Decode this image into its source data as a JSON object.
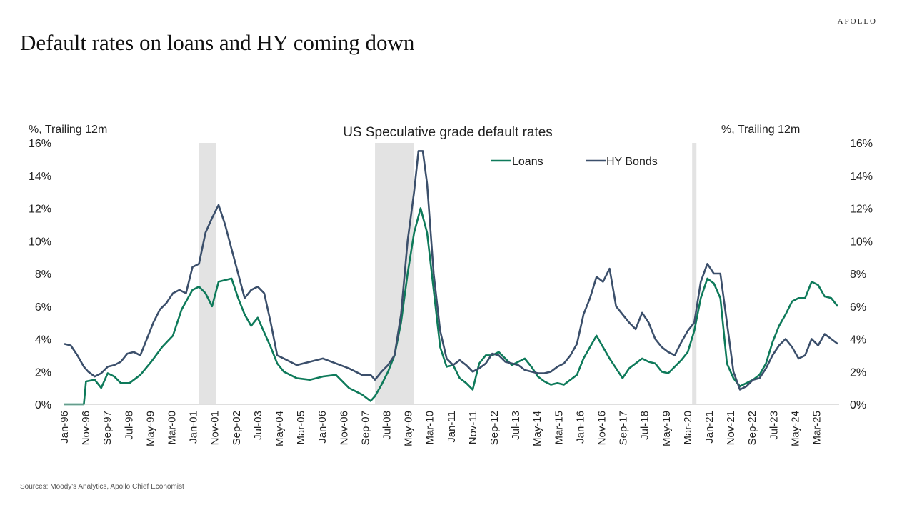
{
  "header": {
    "brand": "APOLLO",
    "title": "Default rates on loans and HY coming down",
    "source": "Sources: Moody's Analytics, Apollo Chief Economist"
  },
  "chart_data": {
    "type": "line",
    "title": "US Speculative grade default rates",
    "ylabel_left": "%, Trailing 12m",
    "ylabel_right": "%, Trailing 12m",
    "ylim": [
      0,
      16
    ],
    "yticks": [
      "0%",
      "2%",
      "4%",
      "6%",
      "8%",
      "10%",
      "12%",
      "14%",
      "16%"
    ],
    "xlim": [
      "1996-01",
      "2025-09"
    ],
    "xticks": [
      "Jan-96",
      "Nov-96",
      "Sep-97",
      "Jul-98",
      "May-99",
      "Mar-00",
      "Jan-01",
      "Nov-01",
      "Sep-02",
      "Jul-03",
      "May-04",
      "Mar-05",
      "Jan-06",
      "Nov-06",
      "Sep-07",
      "Jul-08",
      "May-09",
      "Mar-10",
      "Jan-11",
      "Nov-11",
      "Sep-12",
      "Jul-13",
      "May-14",
      "Mar-15",
      "Jan-16",
      "Nov-16",
      "Sep-17",
      "Jul-18",
      "May-19",
      "Mar-20",
      "Jan-21",
      "Nov-21",
      "Sep-22",
      "Jul-23",
      "May-24",
      "Mar-25"
    ],
    "recessions": [
      [
        "2001-03",
        "2001-11"
      ],
      [
        "2007-12",
        "2009-06"
      ],
      [
        "2020-02",
        "2020-04"
      ]
    ],
    "legend_position": "top-right",
    "series": [
      {
        "name": "Loans",
        "color": "#0e7a5a",
        "points": [
          [
            "1996-01",
            0
          ],
          [
            "1996-10",
            0
          ],
          [
            "1996-11",
            1.4
          ],
          [
            "1997-03",
            1.5
          ],
          [
            "1997-06",
            1.0
          ],
          [
            "1997-09",
            1.9
          ],
          [
            "1997-12",
            1.7
          ],
          [
            "1998-03",
            1.3
          ],
          [
            "1998-07",
            1.3
          ],
          [
            "1998-12",
            1.8
          ],
          [
            "1999-05",
            2.6
          ],
          [
            "1999-10",
            3.5
          ],
          [
            "2000-03",
            4.2
          ],
          [
            "2000-07",
            5.8
          ],
          [
            "2000-12",
            7.0
          ],
          [
            "2001-03",
            7.2
          ],
          [
            "2001-06",
            6.8
          ],
          [
            "2001-09",
            6.0
          ],
          [
            "2001-12",
            7.5
          ],
          [
            "2002-03",
            7.6
          ],
          [
            "2002-06",
            7.7
          ],
          [
            "2002-09",
            6.5
          ],
          [
            "2002-12",
            5.5
          ],
          [
            "2003-03",
            4.8
          ],
          [
            "2003-06",
            5.3
          ],
          [
            "2003-09",
            4.4
          ],
          [
            "2003-12",
            3.5
          ],
          [
            "2004-03",
            2.5
          ],
          [
            "2004-06",
            2.0
          ],
          [
            "2004-12",
            1.6
          ],
          [
            "2005-06",
            1.5
          ],
          [
            "2005-12",
            1.7
          ],
          [
            "2006-06",
            1.8
          ],
          [
            "2006-12",
            1.0
          ],
          [
            "2007-06",
            0.6
          ],
          [
            "2007-10",
            0.2
          ],
          [
            "2007-12",
            0.5
          ],
          [
            "2008-03",
            1.2
          ],
          [
            "2008-06",
            2.0
          ],
          [
            "2008-09",
            3.0
          ],
          [
            "2008-12",
            5.0
          ],
          [
            "2009-03",
            8.0
          ],
          [
            "2009-06",
            10.5
          ],
          [
            "2009-09",
            12.0
          ],
          [
            "2009-12",
            10.5
          ],
          [
            "2010-03",
            7.0
          ],
          [
            "2010-06",
            3.5
          ],
          [
            "2010-09",
            2.3
          ],
          [
            "2010-12",
            2.4
          ],
          [
            "2011-03",
            1.6
          ],
          [
            "2011-06",
            1.3
          ],
          [
            "2011-09",
            0.9
          ],
          [
            "2011-12",
            2.5
          ],
          [
            "2012-03",
            3.0
          ],
          [
            "2012-06",
            3.0
          ],
          [
            "2012-09",
            3.2
          ],
          [
            "2012-12",
            2.8
          ],
          [
            "2013-03",
            2.4
          ],
          [
            "2013-06",
            2.6
          ],
          [
            "2013-09",
            2.8
          ],
          [
            "2013-12",
            2.3
          ],
          [
            "2014-03",
            1.7
          ],
          [
            "2014-06",
            1.4
          ],
          [
            "2014-09",
            1.2
          ],
          [
            "2014-12",
            1.3
          ],
          [
            "2015-03",
            1.2
          ],
          [
            "2015-06",
            1.5
          ],
          [
            "2015-09",
            1.8
          ],
          [
            "2015-12",
            2.8
          ],
          [
            "2016-03",
            3.5
          ],
          [
            "2016-06",
            4.2
          ],
          [
            "2016-09",
            3.5
          ],
          [
            "2016-12",
            2.8
          ],
          [
            "2017-03",
            2.2
          ],
          [
            "2017-06",
            1.6
          ],
          [
            "2017-09",
            2.2
          ],
          [
            "2017-12",
            2.5
          ],
          [
            "2018-03",
            2.8
          ],
          [
            "2018-06",
            2.6
          ],
          [
            "2018-09",
            2.5
          ],
          [
            "2018-12",
            2.0
          ],
          [
            "2019-03",
            1.9
          ],
          [
            "2019-06",
            2.3
          ],
          [
            "2019-09",
            2.7
          ],
          [
            "2019-12",
            3.2
          ],
          [
            "2020-03",
            4.5
          ],
          [
            "2020-06",
            6.5
          ],
          [
            "2020-09",
            7.7
          ],
          [
            "2020-12",
            7.4
          ],
          [
            "2021-03",
            6.5
          ],
          [
            "2021-06",
            2.5
          ],
          [
            "2021-09",
            1.6
          ],
          [
            "2021-12",
            1.1
          ],
          [
            "2022-03",
            1.3
          ],
          [
            "2022-06",
            1.5
          ],
          [
            "2022-09",
            1.8
          ],
          [
            "2022-12",
            2.5
          ],
          [
            "2023-03",
            3.8
          ],
          [
            "2023-06",
            4.8
          ],
          [
            "2023-09",
            5.5
          ],
          [
            "2023-12",
            6.3
          ],
          [
            "2024-03",
            6.5
          ],
          [
            "2024-06",
            6.5
          ],
          [
            "2024-09",
            7.5
          ],
          [
            "2024-12",
            7.3
          ],
          [
            "2025-03",
            6.6
          ],
          [
            "2025-06",
            6.5
          ],
          [
            "2025-09",
            6.0
          ]
        ]
      },
      {
        "name": "HY Bonds",
        "color": "#3b4f6b",
        "points": [
          [
            "1996-01",
            3.7
          ],
          [
            "1996-04",
            3.6
          ],
          [
            "1996-07",
            3.0
          ],
          [
            "1996-10",
            2.3
          ],
          [
            "1996-12",
            2.0
          ],
          [
            "1997-03",
            1.7
          ],
          [
            "1997-06",
            1.9
          ],
          [
            "1997-09",
            2.3
          ],
          [
            "1997-12",
            2.4
          ],
          [
            "1998-03",
            2.6
          ],
          [
            "1998-06",
            3.1
          ],
          [
            "1998-09",
            3.2
          ],
          [
            "1998-12",
            3.0
          ],
          [
            "1999-03",
            4.0
          ],
          [
            "1999-06",
            5.0
          ],
          [
            "1999-09",
            5.8
          ],
          [
            "1999-12",
            6.2
          ],
          [
            "2000-03",
            6.8
          ],
          [
            "2000-06",
            7.0
          ],
          [
            "2000-09",
            6.8
          ],
          [
            "2000-12",
            8.4
          ],
          [
            "2001-03",
            8.6
          ],
          [
            "2001-06",
            10.5
          ],
          [
            "2001-09",
            11.4
          ],
          [
            "2001-12",
            12.2
          ],
          [
            "2002-03",
            11.0
          ],
          [
            "2002-06",
            9.5
          ],
          [
            "2002-09",
            8.0
          ],
          [
            "2002-12",
            6.5
          ],
          [
            "2003-03",
            7.0
          ],
          [
            "2003-06",
            7.2
          ],
          [
            "2003-09",
            6.8
          ],
          [
            "2003-12",
            5.0
          ],
          [
            "2004-03",
            3.0
          ],
          [
            "2004-06",
            2.8
          ],
          [
            "2004-12",
            2.4
          ],
          [
            "2005-06",
            2.6
          ],
          [
            "2005-12",
            2.8
          ],
          [
            "2006-06",
            2.5
          ],
          [
            "2006-12",
            2.2
          ],
          [
            "2007-06",
            1.8
          ],
          [
            "2007-10",
            1.8
          ],
          [
            "2007-12",
            1.5
          ],
          [
            "2008-03",
            2.0
          ],
          [
            "2008-06",
            2.4
          ],
          [
            "2008-09",
            3.0
          ],
          [
            "2008-12",
            5.5
          ],
          [
            "2009-03",
            10.0
          ],
          [
            "2009-06",
            13.0
          ],
          [
            "2009-08",
            15.5
          ],
          [
            "2009-10",
            15.5
          ],
          [
            "2009-12",
            13.5
          ],
          [
            "2010-03",
            8.0
          ],
          [
            "2010-06",
            4.5
          ],
          [
            "2010-09",
            2.8
          ],
          [
            "2010-12",
            2.4
          ],
          [
            "2011-03",
            2.7
          ],
          [
            "2011-06",
            2.4
          ],
          [
            "2011-09",
            2.0
          ],
          [
            "2011-12",
            2.2
          ],
          [
            "2012-03",
            2.5
          ],
          [
            "2012-06",
            3.1
          ],
          [
            "2012-09",
            3.0
          ],
          [
            "2012-12",
            2.6
          ],
          [
            "2013-03",
            2.5
          ],
          [
            "2013-06",
            2.4
          ],
          [
            "2013-09",
            2.1
          ],
          [
            "2013-12",
            2.0
          ],
          [
            "2014-03",
            1.9
          ],
          [
            "2014-06",
            1.9
          ],
          [
            "2014-09",
            2.0
          ],
          [
            "2014-12",
            2.3
          ],
          [
            "2015-03",
            2.5
          ],
          [
            "2015-06",
            3.0
          ],
          [
            "2015-09",
            3.7
          ],
          [
            "2015-12",
            5.5
          ],
          [
            "2016-03",
            6.5
          ],
          [
            "2016-06",
            7.8
          ],
          [
            "2016-09",
            7.5
          ],
          [
            "2016-12",
            8.3
          ],
          [
            "2017-03",
            6.0
          ],
          [
            "2017-06",
            5.5
          ],
          [
            "2017-09",
            5.0
          ],
          [
            "2017-12",
            4.6
          ],
          [
            "2018-03",
            5.6
          ],
          [
            "2018-06",
            5.0
          ],
          [
            "2018-09",
            4.0
          ],
          [
            "2018-12",
            3.5
          ],
          [
            "2019-03",
            3.2
          ],
          [
            "2019-06",
            3.0
          ],
          [
            "2019-09",
            3.8
          ],
          [
            "2019-12",
            4.5
          ],
          [
            "2020-03",
            5.0
          ],
          [
            "2020-06",
            7.5
          ],
          [
            "2020-09",
            8.6
          ],
          [
            "2020-12",
            8.0
          ],
          [
            "2021-03",
            8.0
          ],
          [
            "2021-06",
            5.0
          ],
          [
            "2021-09",
            2.0
          ],
          [
            "2021-12",
            0.9
          ],
          [
            "2022-03",
            1.1
          ],
          [
            "2022-06",
            1.5
          ],
          [
            "2022-09",
            1.6
          ],
          [
            "2022-12",
            2.2
          ],
          [
            "2023-03",
            3.0
          ],
          [
            "2023-06",
            3.6
          ],
          [
            "2023-09",
            4.0
          ],
          [
            "2023-12",
            3.5
          ],
          [
            "2024-03",
            2.8
          ],
          [
            "2024-06",
            3.0
          ],
          [
            "2024-09",
            4.0
          ],
          [
            "2024-12",
            3.6
          ],
          [
            "2025-03",
            4.3
          ],
          [
            "2025-06",
            4.0
          ],
          [
            "2025-09",
            3.7
          ]
        ]
      }
    ]
  }
}
